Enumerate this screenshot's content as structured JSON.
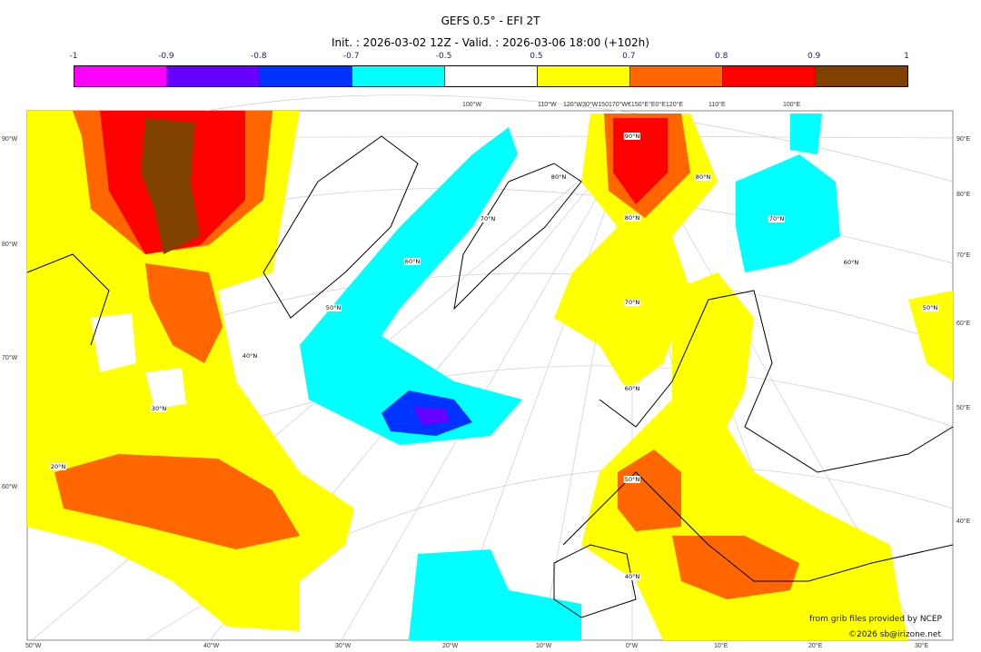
{
  "title": "GEFS 0.5° - EFI 2T",
  "subtitle": "Init. : 2026-03-02 12Z - Valid. : 2026-03-06 18:00 (+102h)",
  "colorbar": {
    "ticks": [
      "-1",
      "-0.9",
      "-0.8",
      "-0.7",
      "-0.5",
      "0.5",
      "0.7",
      "0.8",
      "0.9",
      "1"
    ],
    "colors": [
      "#ff00ff",
      "#6600ff",
      "#0033ff",
      "#00ffff",
      "#ffffff",
      "#ffff00",
      "#ff6600",
      "#ff0000",
      "#804000"
    ]
  },
  "axes": {
    "left": [
      "90°W",
      "80°W",
      "70°W",
      "60°W"
    ],
    "right": [
      "90°E",
      "80°E",
      "70°E",
      "60°E",
      "50°E",
      "40°E"
    ],
    "bottom": [
      "50°W",
      "40°W",
      "30°W",
      "20°W",
      "10°W",
      "0°W",
      "10°E",
      "20°E",
      "30°E"
    ],
    "top": [
      "100°W",
      "110°W",
      "120°W30°W150170°W€150°E°E0°E120°E",
      "110°E",
      "100°E"
    ]
  },
  "lat_labels": [
    "90°N",
    "80°N",
    "70°N",
    "60°N",
    "50°N",
    "40°N",
    "80°N",
    "70°N",
    "60°N",
    "50°N",
    "40°N",
    "30°N",
    "20°N",
    "80°N",
    "70°N",
    "60°N",
    "50°N"
  ],
  "credits": {
    "source": "from grib files provided by NCEP",
    "copyright": "©2026 sb@irizone.net"
  }
}
